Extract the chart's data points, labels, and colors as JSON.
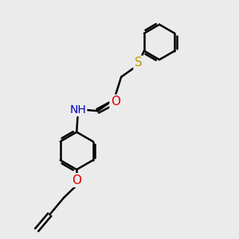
{
  "background_color": "#ebebeb",
  "atom_colors": {
    "S": "#b8a000",
    "O": "#dd0000",
    "N": "#0000cc",
    "C": "#000000",
    "H": "#708090"
  },
  "bond_color": "#000000",
  "bond_width": 1.8,
  "font_size_atoms": 10,
  "figsize": [
    3.0,
    3.0
  ],
  "xlim": [
    0,
    10
  ],
  "ylim": [
    0,
    10
  ]
}
